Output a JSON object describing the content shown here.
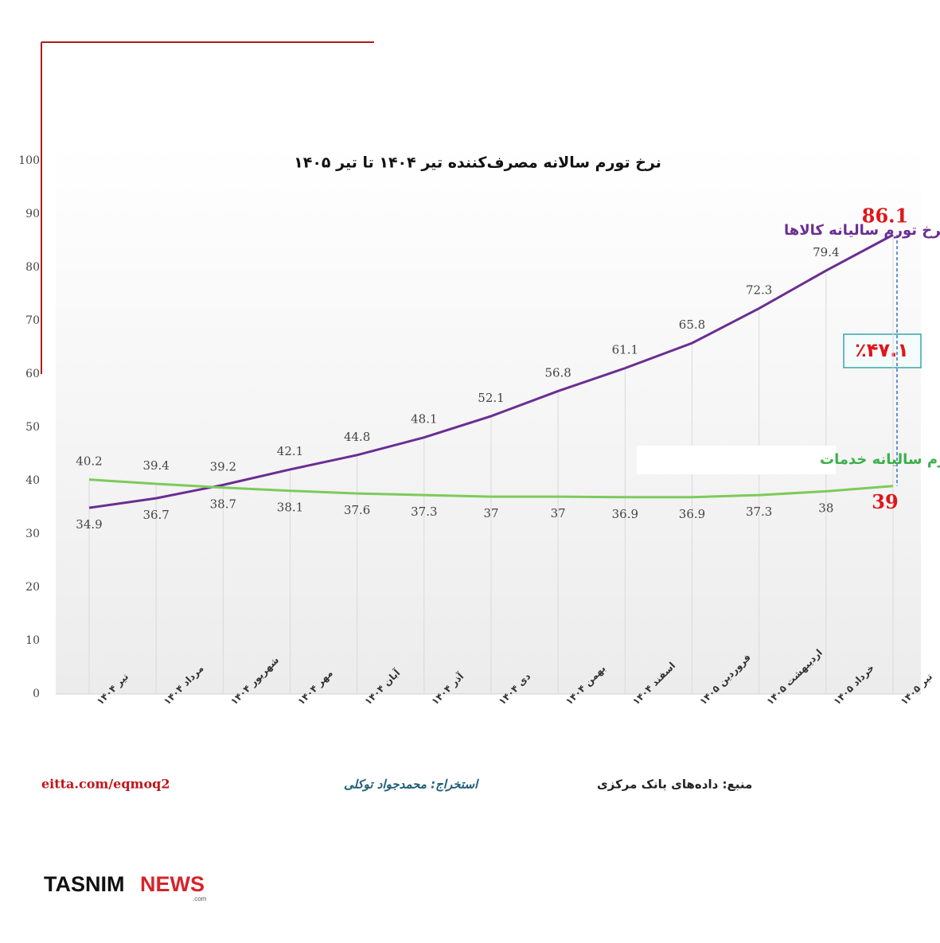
{
  "chart_data": {
    "type": "line",
    "title": "نرخ تورم  سالانه مصرف‌کننده تیر ۱۴۰۴ تا تیر ۱۴۰۵",
    "categories": [
      "تیر ۱۴۰۴",
      "مرداد ۱۴۰۴",
      "شهریور ۱۴۰۴",
      "مهر ۱۴۰۴",
      "آبان ۱۴۰۴",
      "آذر ۱۴۰۴",
      "دی ۱۴۰۴",
      "بهمن ۱۴۰۴",
      "اسفند ۱۴۰۴",
      "فروردین ۱۴۰۵",
      "اردیبهشت ۱۴۰۵",
      "خرداد ۱۴۰۵",
      "تیر ۱۴۰۵"
    ],
    "series": [
      {
        "name": "نرخ تورم سالیانه کالاها",
        "color": "#6b2d92",
        "values": [
          34.9,
          36.7,
          39.2,
          42.1,
          44.8,
          48.1,
          52.1,
          56.8,
          61.1,
          65.8,
          72.3,
          79.4,
          86.1
        ]
      },
      {
        "name": "نرخ تورم سالیانه خدمات",
        "color": "#7ccb5a",
        "values": [
          40.2,
          39.4,
          38.7,
          38.1,
          37.6,
          37.3,
          37,
          37,
          36.9,
          36.9,
          37.3,
          38,
          39
        ]
      }
    ],
    "ylim": [
      0,
      100
    ],
    "yticks": [
      0,
      10,
      20,
      30,
      40,
      50,
      60,
      70,
      80,
      90,
      100
    ],
    "end_label_color": "#e0161b",
    "annotation": "٪۴۷.۱",
    "source": "منبع: داده‌های بانک مرکزی",
    "author": "استخراج: محمدجواد توکلی",
    "link": "eitta.com/eqmoq2"
  },
  "logo": {
    "main": "TASNIM",
    "accent": "NEWS",
    "suffix": ".com"
  }
}
